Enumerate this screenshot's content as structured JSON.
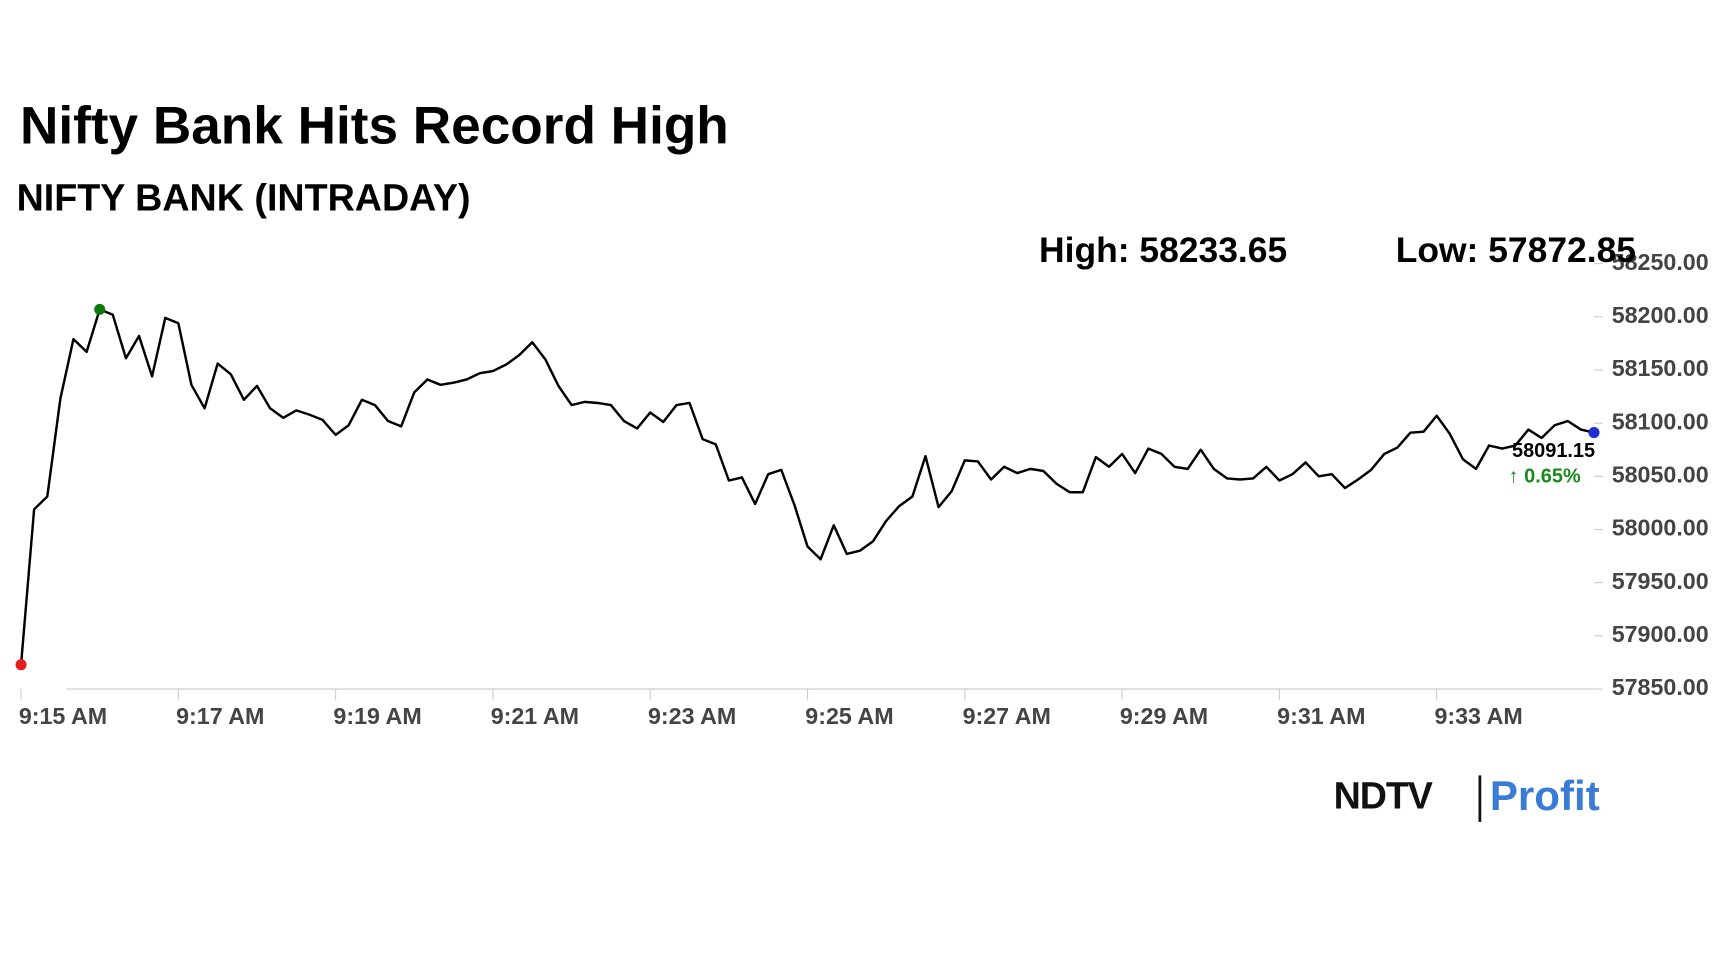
{
  "chart_data": {
    "type": "line",
    "title": "Nifty Bank Hits Record High",
    "subtitle": "NIFTY BANK (INTRADAY)",
    "high": "High: 58233.65",
    "low": "Low: 57872.85",
    "last_value": "58091.15",
    "change": "↑ 0.65%",
    "brand": [
      "NDTV",
      "Profit"
    ],
    "color": "#000000",
    "values": [
      57872.85,
      58019,
      58031,
      58123,
      58179,
      58167,
      58207,
      58202,
      58161,
      58182,
      58144,
      58199,
      58194,
      58136,
      58114,
      58156,
      58146,
      58122,
      58135,
      58114,
      58105,
      58112,
      58108,
      58103,
      58089,
      58098,
      58122,
      58117,
      58102,
      58097,
      58129,
      58141,
      58136,
      58138,
      58141,
      58147,
      58149,
      58155,
      58164,
      58176,
      58160,
      58135,
      58117,
      58120,
      58119,
      58117,
      58102,
      58095,
      58110,
      58101,
      58117,
      58119,
      58085,
      58080,
      58046,
      58049,
      58024,
      58052,
      58056,
      58023,
      57984,
      57972,
      58004,
      57977,
      57980,
      57989,
      58008,
      58022,
      58031,
      58069,
      58021,
      58036,
      58065,
      58064,
      58047,
      58059,
      58053,
      58057,
      58055,
      58043,
      58035,
      58035,
      58068,
      58059,
      58071,
      58053,
      58076,
      58071,
      58059,
      58057,
      58075,
      58057,
      58048,
      58047,
      58048,
      58059,
      58046,
      58052,
      58063,
      58050,
      58052,
      58039,
      58047,
      58056,
      58071,
      58077,
      58091,
      58092,
      58107,
      58090,
      58066,
      58057,
      58079,
      58076,
      58079,
      58094,
      58086,
      58098,
      58102,
      58094,
      58091.15
    ],
    "xlim": [
      0,
      120
    ],
    "xticks": [
      {
        "value": 0,
        "label": "9:15 AM"
      },
      {
        "value": 12,
        "label": "9:17 AM"
      },
      {
        "value": 24,
        "label": "9:19 AM"
      },
      {
        "value": 36,
        "label": "9:21 AM"
      },
      {
        "value": 48,
        "label": "9:23 AM"
      },
      {
        "value": 60,
        "label": "9:25 AM"
      },
      {
        "value": 72,
        "label": "9:27 AM"
      },
      {
        "value": 84,
        "label": "9:29 AM"
      },
      {
        "value": 96,
        "label": "9:31 AM"
      },
      {
        "value": 108,
        "label": "9:33 AM"
      }
    ],
    "ylim": [
      57850,
      58250
    ],
    "yticks": [
      {
        "value": 57850,
        "label": "57850.00"
      },
      {
        "value": 57900,
        "label": "57900.00"
      },
      {
        "value": 57950,
        "label": "57950.00"
      },
      {
        "value": 58000,
        "label": "58000.00"
      },
      {
        "value": 58050,
        "label": "58050.00"
      },
      {
        "value": 58100,
        "label": "58100.00"
      },
      {
        "value": 58150,
        "label": "58150.00"
      },
      {
        "value": 58200,
        "label": "58200.00"
      },
      {
        "value": 58250,
        "label": "58250.00"
      }
    ]
  }
}
